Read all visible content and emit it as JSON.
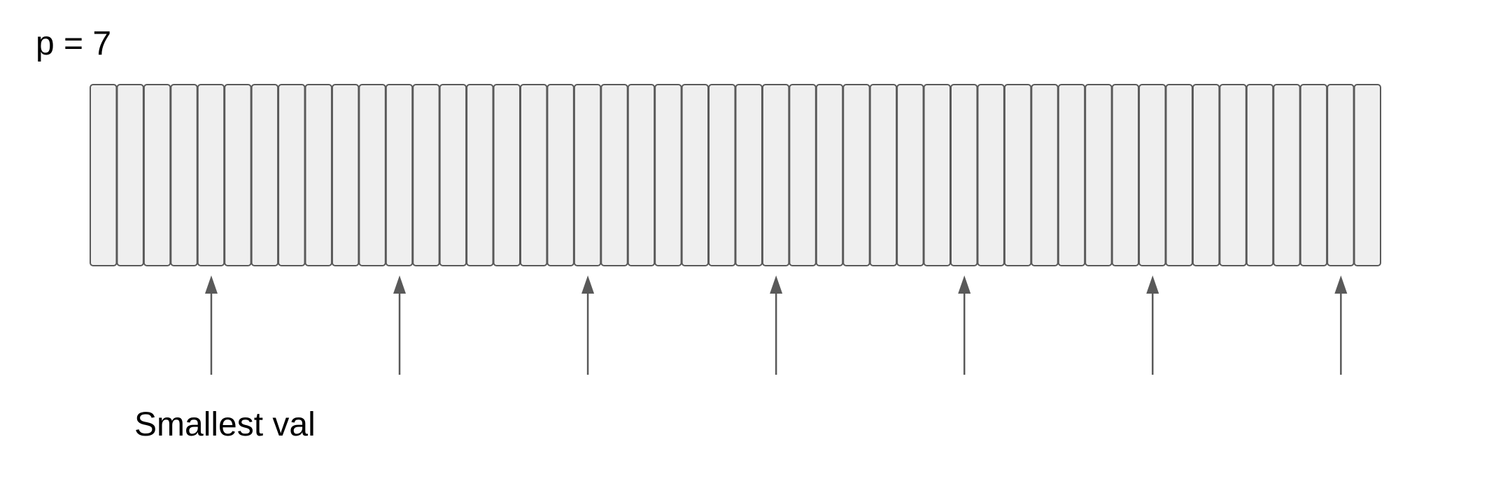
{
  "header": {
    "p_label": "p = 7"
  },
  "array": {
    "cell_count": 48,
    "cell_fill": "#efefef",
    "cell_stroke": "#595959"
  },
  "pointers": {
    "count": 7,
    "cell_indices": [
      4,
      11,
      18,
      25,
      32,
      39,
      46
    ],
    "color": "#595959"
  },
  "caption": {
    "text": "Smallest val"
  }
}
